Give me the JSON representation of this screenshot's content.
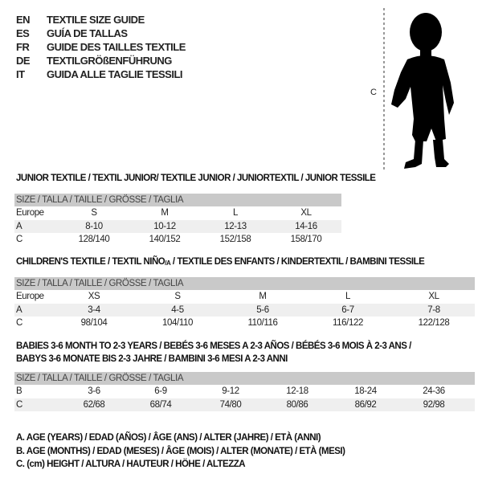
{
  "languages": [
    {
      "code": "EN",
      "title": "TEXTILE SIZE GUIDE"
    },
    {
      "code": "ES",
      "title": "GUÍA DE TALLAS"
    },
    {
      "code": "FR",
      "title": "GUIDE DES TAILLES TEXTILE"
    },
    {
      "code": "DE",
      "title": "TEXTILGRÖßENFÜHRUNG"
    },
    {
      "code": "IT",
      "title": "GUIDA ALLE TAGLIE TESSILI"
    }
  ],
  "figure": {
    "label": "C",
    "icon": "child-silhouette"
  },
  "junior": {
    "title": "JUNIOR TEXTILE / TEXTIL JUNIOR/ TEXTILE JUNIOR / JUNIORTEXTIL / JUNIOR TESSILE",
    "header": "SIZE / TALLA / TAILLE / GRÖSSE / TAGLIA",
    "rows": [
      {
        "label": "Europe",
        "values": [
          "S",
          "M",
          "L",
          "XL"
        ]
      },
      {
        "label": "A",
        "values": [
          "8-10",
          "10-12",
          "12-13",
          "14-16"
        ]
      },
      {
        "label": "C",
        "values": [
          "128/140",
          "140/152",
          "152/158",
          "158/170"
        ]
      }
    ]
  },
  "children": {
    "title_a": "CHILDREN'S TEXTILE / TEXTIL NIÑO",
    "title_sub": "/A",
    "title_b": " / TEXTILE DES ENFANTS / KINDERTEXTIL / BAMBINI TESSILE",
    "header": "SIZE / TALLA / TAILLE / GRÖSSE / TAGLIA",
    "rows": [
      {
        "label": "Europe",
        "values": [
          "XS",
          "S",
          "M",
          "L",
          "XL"
        ]
      },
      {
        "label": "A",
        "values": [
          "3-4",
          "4-5",
          "5-6",
          "6-7",
          "7-8"
        ]
      },
      {
        "label": "C",
        "values": [
          "98/104",
          "104/110",
          "110/116",
          "116/122",
          "122/128"
        ]
      }
    ]
  },
  "babies": {
    "title_line1": "BABIES 3-6 MONTH TO 2-3 YEARS / BEBÉS 3-6 MESES A 2-3 AÑOS / BÉBÉS 3-6 MOIS À 2-3 ANS /",
    "title_line2": "BABYS 3-6 MONATE BIS 2-3 JAHRE / BAMBINI 3-6 MESI A 2-3 ANNI",
    "header": "SIZE / TALLA / TAILLE / GRÖSSE / TAGLIA",
    "rows": [
      {
        "label": "B",
        "values": [
          "3-6",
          "6-9",
          "9-12",
          "12-18",
          "18-24",
          "24-36"
        ]
      },
      {
        "label": "C",
        "values": [
          "62/68",
          "68/74",
          "74/80",
          "80/86",
          "86/92",
          "92/98"
        ]
      }
    ]
  },
  "notes": [
    "A. AGE (YEARS) / EDAD (AÑOS) / ÂGE (ANS) / ALTER (JAHRE) / ETÀ (ANNI)",
    "B. AGE (MONTHS) / EDAD (MESES) / ÂGE (MOIS) / ALTER (MONATE) / ETÀ (MESI)",
    "C. (cm) HEIGHT / ALTURA / HAUTEUR / HÖHE / ALTEZZA"
  ]
}
